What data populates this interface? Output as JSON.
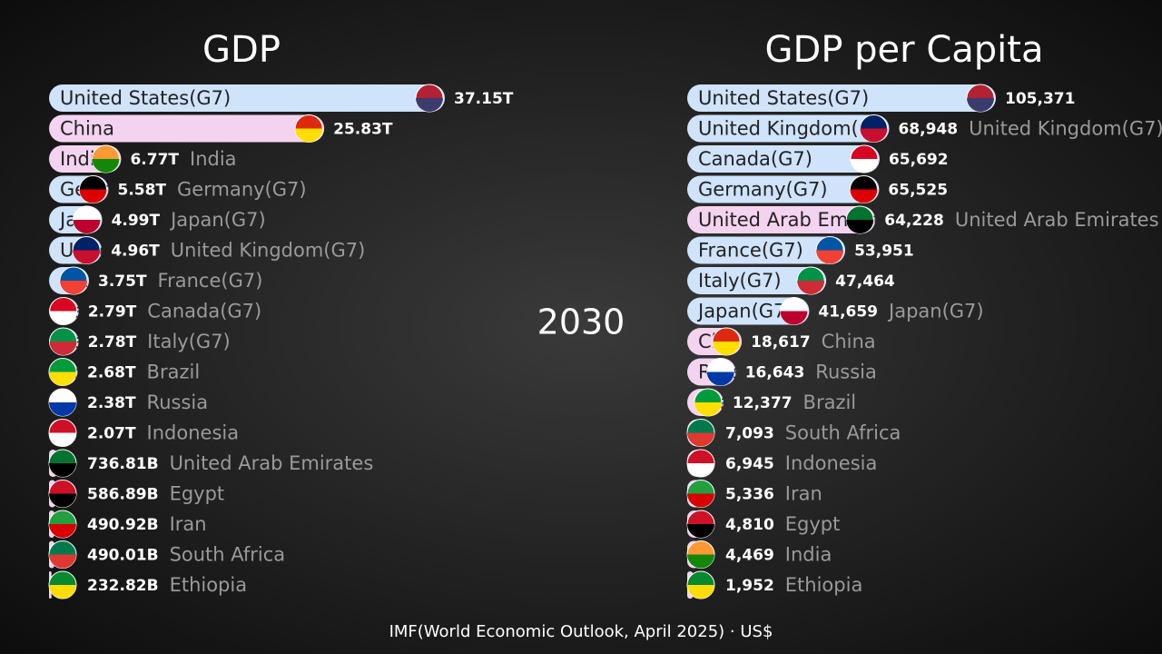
{
  "chart_data": [
    {
      "type": "bar",
      "title": "GDP",
      "categories": [
        "United States(G7)",
        "China",
        "India",
        "Germany(G7)",
        "Japan(G7)",
        "United Kingdom(G7)",
        "France(G7)",
        "Canada(G7)",
        "Italy(G7)",
        "Brazil",
        "Russia",
        "Indonesia",
        "United Arab Emirates",
        "Egypt",
        "Iran",
        "South Africa",
        "Ethiopia"
      ],
      "values": [
        37150000000000,
        25830000000000,
        6770000000000,
        5580000000000,
        4990000000000,
        4960000000000,
        3750000000000,
        2790000000000,
        2780000000000,
        2680000000000,
        2380000000000,
        2070000000000,
        736810000000,
        586890000000,
        490920000000,
        490010000000,
        232820000000
      ],
      "value_labels": [
        "37.15T",
        "25.83T",
        "6.77T",
        "5.58T",
        "4.99T",
        "4.96T",
        "3.75T",
        "2.79T",
        "2.78T",
        "2.68T",
        "2.38T",
        "2.07T",
        "736.81B",
        "586.89B",
        "490.92B",
        "490.01B",
        "232.82B"
      ],
      "colors": [
        "#cfe3fb",
        "#f4d3f0",
        "#f4d3f0",
        "#cfe3fb",
        "#cfe3fb",
        "#cfe3fb",
        "#cfe3fb",
        "#cfe3fb",
        "#cfe3fb",
        "#f4d3f0",
        "#f4d3f0",
        "#f4d3f0",
        "#f4d3f0",
        "#f4d3f0",
        "#f4d3f0",
        "#f4d3f0",
        "#f4d3f0"
      ]
    },
    {
      "type": "bar",
      "title": "GDP per Capita",
      "categories": [
        "United States(G7)",
        "United Kingdom(G7)",
        "Canada(G7)",
        "Germany(G7)",
        "United Arab Emirates",
        "France(G7)",
        "Italy(G7)",
        "Japan(G7)",
        "China",
        "Russia",
        "Brazil",
        "South Africa",
        "Indonesia",
        "Iran",
        "Egypt",
        "India",
        "Ethiopia"
      ],
      "values": [
        105371,
        68948,
        65692,
        65525,
        64228,
        53951,
        47464,
        41659,
        18617,
        16643,
        12377,
        7093,
        6945,
        5336,
        4810,
        4469,
        1952
      ],
      "value_labels": [
        "105,371",
        "68,948",
        "65,692",
        "65,525",
        "64,228",
        "53,951",
        "47,464",
        "41,659",
        "18,617",
        "16,643",
        "12,377",
        "7,093",
        "6,945",
        "5,336",
        "4,810",
        "4,469",
        "1,952"
      ],
      "colors": [
        "#cfe3fb",
        "#cfe3fb",
        "#cfe3fb",
        "#cfe3fb",
        "#f4d3f0",
        "#cfe3fb",
        "#cfe3fb",
        "#cfe3fb",
        "#f4d3f0",
        "#f4d3f0",
        "#f4d3f0",
        "#f4d3f0",
        "#f4d3f0",
        "#f4d3f0",
        "#f4d3f0",
        "#f4d3f0",
        "#f4d3f0"
      ]
    }
  ],
  "year": "2030",
  "source": "IMF(World Economic Outlook, April 2025) · US$"
}
